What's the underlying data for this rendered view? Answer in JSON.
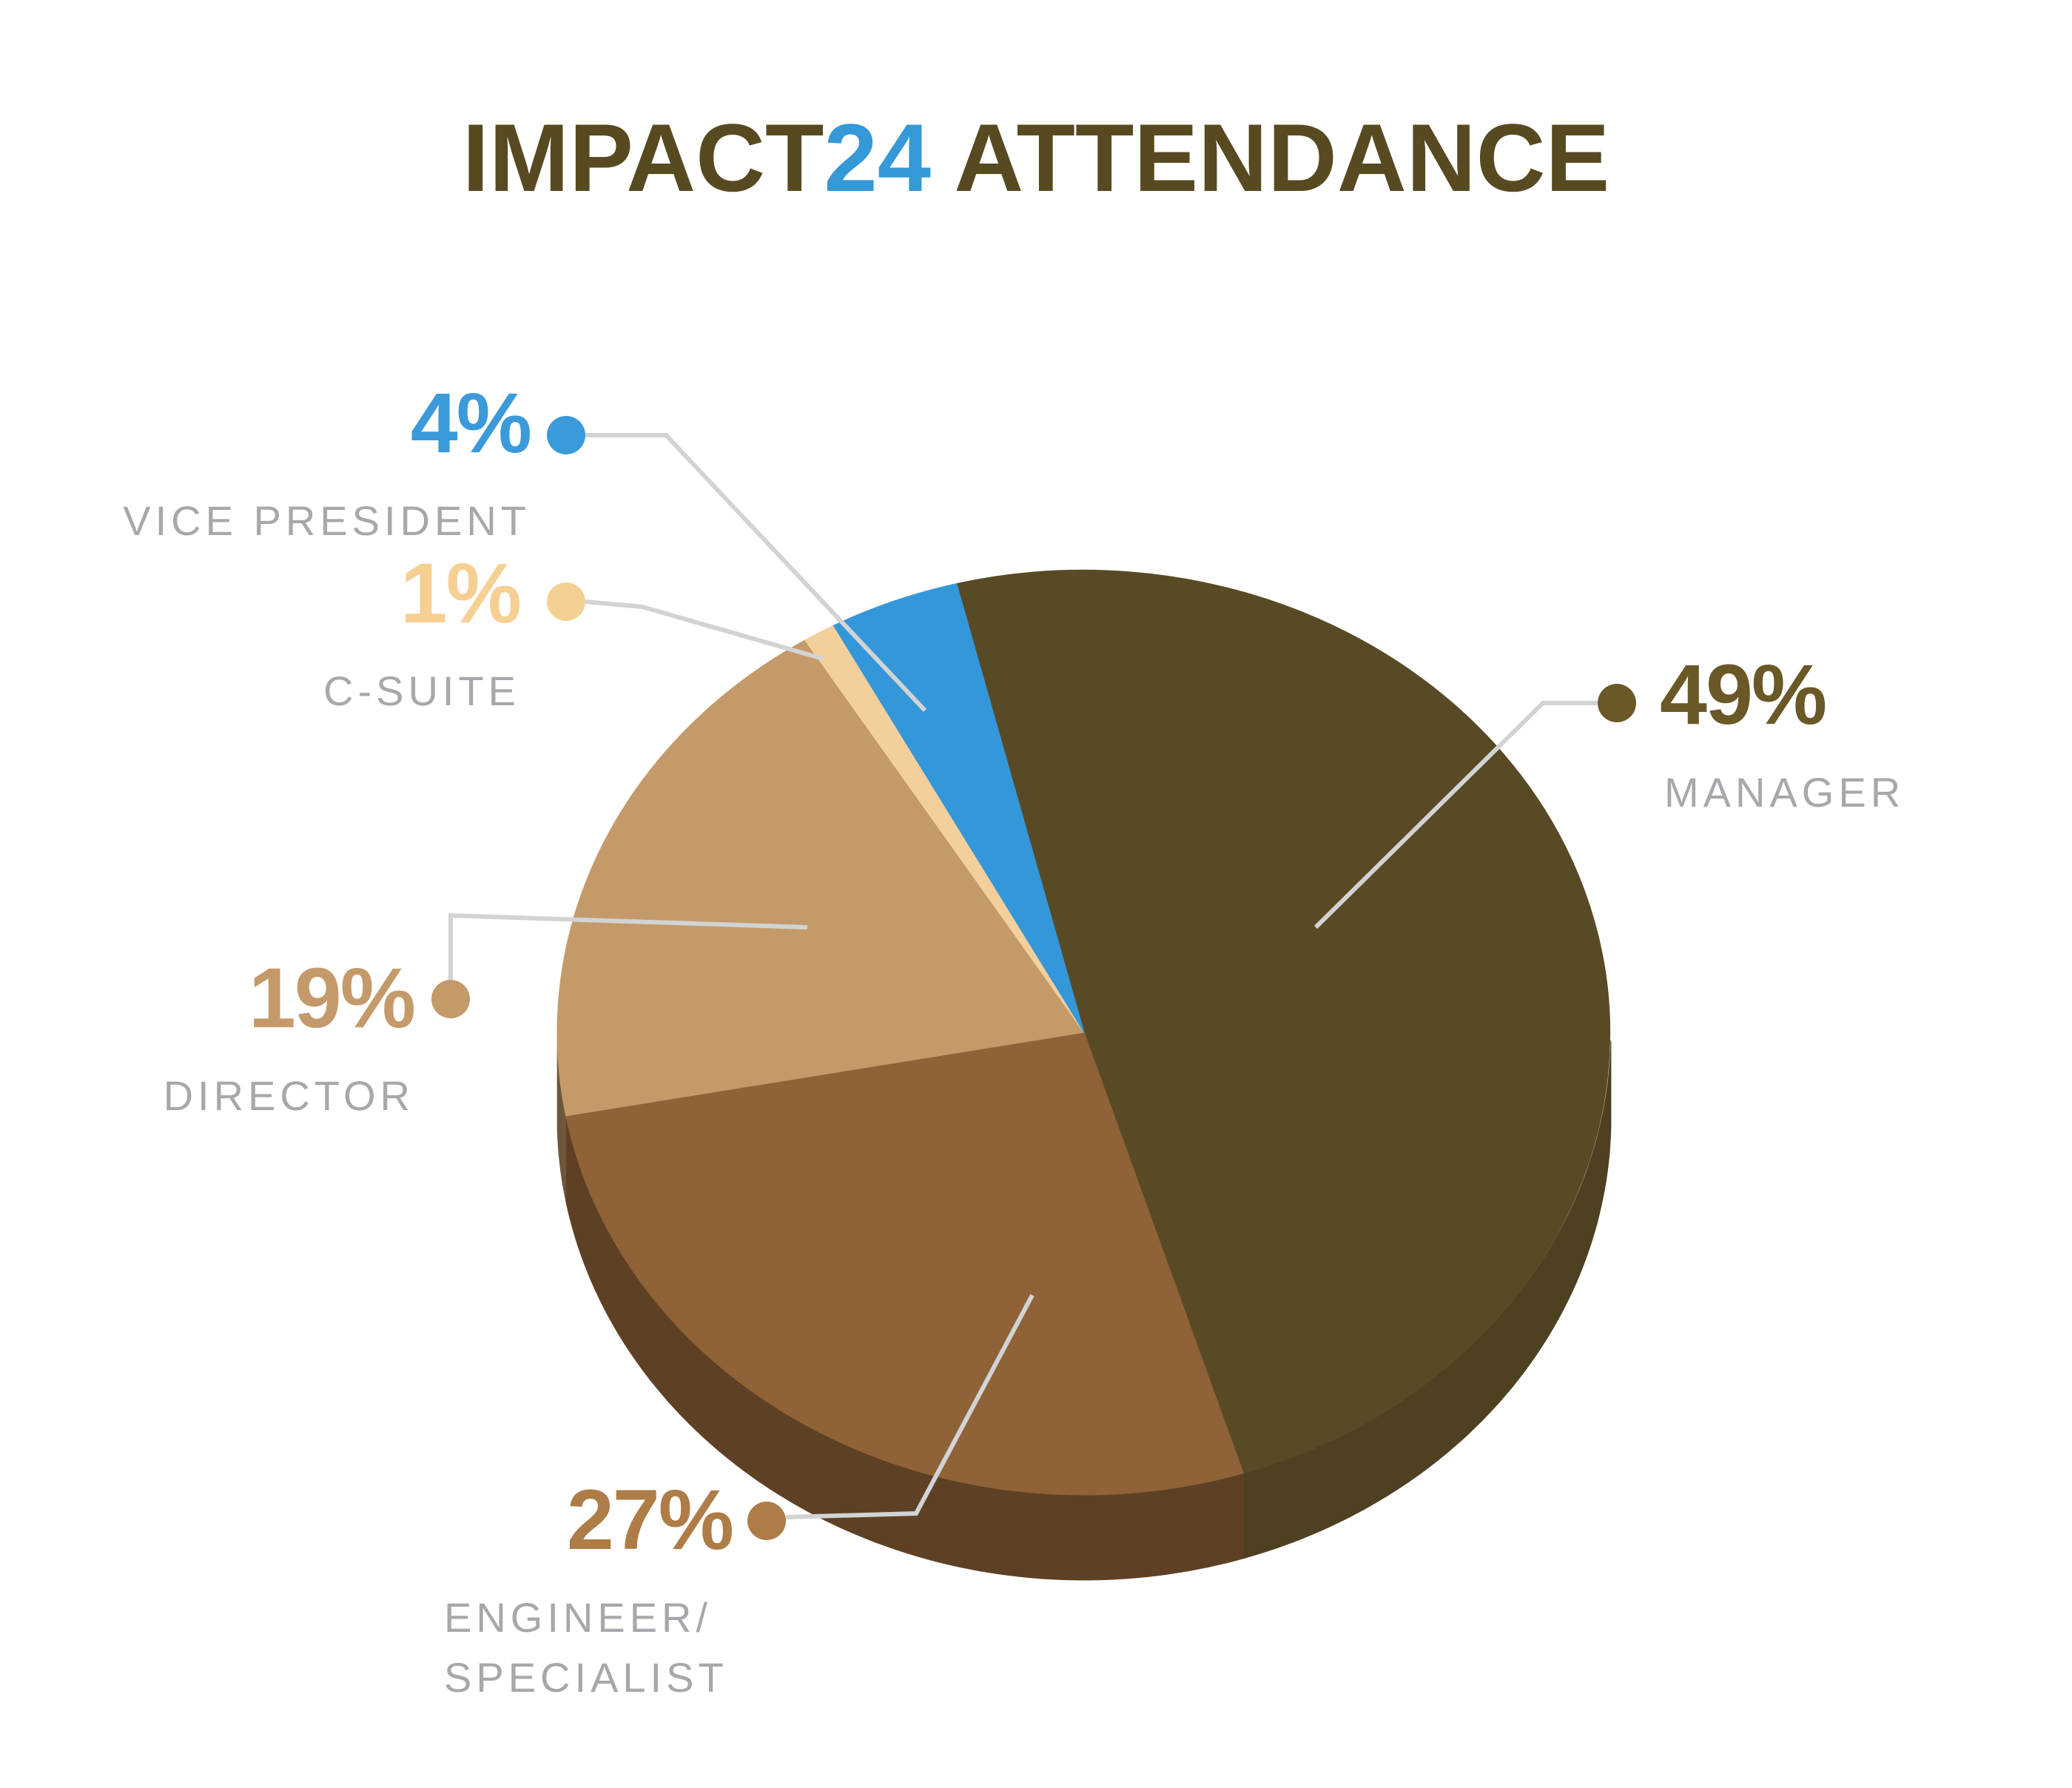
{
  "title": {
    "part1": "IMPACT",
    "accent": "24",
    "part2": " ATTENDANCE"
  },
  "chart_data": {
    "type": "pie",
    "style": "3d",
    "title": "IMPACT24 ATTENDANCE",
    "unit": "%",
    "total": 100,
    "legend_position": "callouts-around-pie",
    "start_angle_deg": 104,
    "clockwise": true,
    "slices": [
      {
        "name": "MANAGER",
        "value": 49,
        "pct_label": "49%",
        "color": "#594a26",
        "label_color": "#6a5827"
      },
      {
        "name": "ENGINEER/\nSPECIALIST",
        "value": 27,
        "pct_label": "27%",
        "color": "#8f6237",
        "label_color": "#ae7c46"
      },
      {
        "name": "DIRECTOR",
        "value": 19,
        "pct_label": "19%",
        "color": "#c49a6a",
        "label_color": "#c49a6a"
      },
      {
        "name": "C-SUITE",
        "value": 1,
        "pct_label": "1%",
        "color": "#f3cf9b",
        "label_color": "#f6d092"
      },
      {
        "name": "VICE PRESIDENT",
        "value": 4,
        "pct_label": "4%",
        "color": "#3497da",
        "label_color": "#3b9ad9"
      }
    ],
    "colors": {
      "title_olive": "#574a21",
      "title_blue": "#3598d7",
      "label_gray": "#a6a8ab",
      "leader_gray": "#d1d3d4",
      "background": "#ffffff"
    }
  }
}
